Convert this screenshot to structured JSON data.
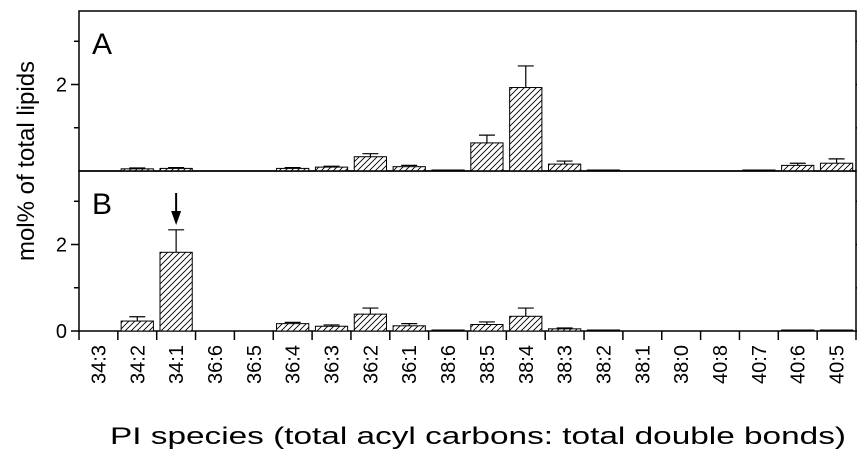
{
  "chart_data": {
    "type": "bar",
    "xlabel": "PI species (total acyl carbons: total double bonds)",
    "ylabel": "mol% of total lipids",
    "categories": [
      "34:3",
      "34:2",
      "34:1",
      "36:6",
      "36:5",
      "36:4",
      "36:3",
      "36:2",
      "36:1",
      "38:6",
      "38:5",
      "38:4",
      "38:3",
      "38:2",
      "38:1",
      "38:0",
      "40:8",
      "40:7",
      "40:6",
      "40:5"
    ],
    "panels": [
      {
        "label": "A",
        "ylim": [
          0,
          3.7
        ],
        "yticks": [
          {
            "value": 2,
            "label": "2"
          }
        ],
        "values": [
          0,
          0.05,
          0.06,
          0,
          0,
          0.06,
          0.09,
          0.33,
          0.1,
          0.02,
          0.65,
          1.93,
          0.16,
          0.02,
          0,
          0,
          0,
          0.02,
          0.13,
          0.18
        ],
        "errors": [
          0,
          0.02,
          0.02,
          0,
          0,
          0.02,
          0.02,
          0.07,
          0.03,
          0,
          0.18,
          0.5,
          0.07,
          0,
          0,
          0,
          0,
          0,
          0.05,
          0.1
        ]
      },
      {
        "label": "B",
        "ylim": [
          0,
          3.7
        ],
        "yticks": [
          {
            "value": 0,
            "label": "0"
          },
          {
            "value": 2,
            "label": "2"
          }
        ],
        "values": [
          0,
          0.23,
          1.82,
          0,
          0,
          0.17,
          0.11,
          0.39,
          0.12,
          0.01,
          0.15,
          0.34,
          0.05,
          0.01,
          0,
          0,
          0,
          0,
          0.01,
          0.02
        ],
        "errors": [
          0,
          0.1,
          0.52,
          0,
          0,
          0.03,
          0.03,
          0.14,
          0.05,
          0,
          0.06,
          0.19,
          0.02,
          0,
          0,
          0,
          0,
          0,
          0,
          0
        ],
        "arrow_category": "34:1"
      }
    ],
    "grid": false,
    "bar_fill": "hatched",
    "colors": {
      "axis": "#000000",
      "bar_stroke": "#000000",
      "hatch": "#000000",
      "background": "#ffffff"
    }
  }
}
